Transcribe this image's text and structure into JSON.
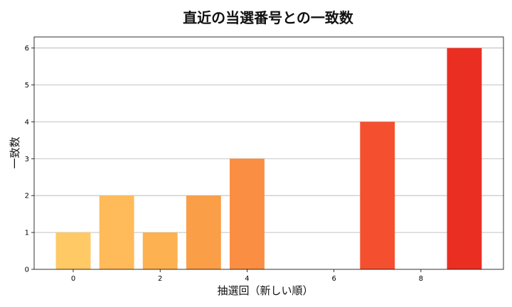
{
  "chart_data": {
    "type": "bar",
    "title": "直近の当選番号との一致数",
    "xlabel": "抽選回（新しい順）",
    "ylabel": "一致数",
    "x": [
      0,
      1,
      2,
      3,
      4,
      5,
      6,
      7,
      8,
      9
    ],
    "values": [
      1,
      2,
      1,
      2,
      3,
      0,
      0,
      4,
      0,
      6
    ],
    "colors": [
      "#FFC966",
      "#FFBA59",
      "#FDB150",
      "#FB9E48",
      "#FA8E42",
      "#F87A3A",
      "#F66A35",
      "#F45030",
      "#F03E28",
      "#EA2F22"
    ],
    "xticks": [
      0,
      2,
      4,
      6,
      8
    ],
    "yticks": [
      0,
      1,
      2,
      3,
      4,
      5,
      6
    ],
    "xlim": [
      -0.9,
      9.9
    ],
    "ylim": [
      0,
      6.3
    ],
    "grid": "y"
  }
}
